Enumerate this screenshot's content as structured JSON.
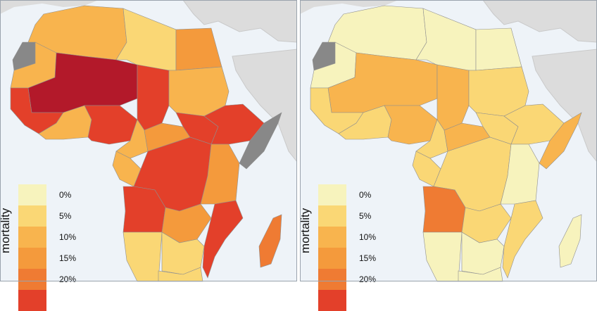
{
  "maps": [
    {
      "id": "left",
      "legend_title": "mortality",
      "legend_items": [
        {
          "label": "0%",
          "color": "#f7f3bd"
        },
        {
          "label": "5%",
          "color": "#fad775"
        },
        {
          "label": "10%",
          "color": "#f8b44e"
        },
        {
          "label": "15%",
          "color": "#f49a3c"
        },
        {
          "label": "20%",
          "color": "#ef7b33"
        },
        {
          "label": "",
          "color": "#e3402a"
        }
      ],
      "region_colors": {
        "north_west": "#f8b44e",
        "libya": "#fad775",
        "egypt": "#f49a3c",
        "sahel": "#b3192a",
        "chad": "#e3402a",
        "sudan": "#f8b44e",
        "horn": "#e3402a",
        "west_coast": "#e3402a",
        "gulf_coast": "#f8b44e",
        "nigeria": "#e3402a",
        "cameroon": "#f8b44e",
        "car": "#f49a3c",
        "south_sudan": "#e3402a",
        "ethiopia": "#e3402a",
        "somalia": "#888888",
        "drc": "#e3402a",
        "gabon": "#f8b44e",
        "kenya_tz": "#f49a3c",
        "angola": "#e3402a",
        "zambia": "#f49a3c",
        "mozambique": "#e3402a",
        "namibia": "#fad775",
        "botswana": "#fad775",
        "south_africa": "#fad775",
        "madagascar": "#ef7b33",
        "western_sahara": "#888888"
      }
    },
    {
      "id": "right",
      "legend_title": "mortality",
      "legend_items": [
        {
          "label": "0%",
          "color": "#f7f3bd"
        },
        {
          "label": "5%",
          "color": "#fad775"
        },
        {
          "label": "10%",
          "color": "#f8b44e"
        },
        {
          "label": "15%",
          "color": "#f49a3c"
        },
        {
          "label": "20%",
          "color": "#ef7b33"
        },
        {
          "label": "",
          "color": "#e3402a"
        }
      ],
      "region_colors": {
        "north_west": "#f7f3bd",
        "libya": "#f7f3bd",
        "egypt": "#f7f3bd",
        "sahel": "#f8b44e",
        "chad": "#f8b44e",
        "sudan": "#fad775",
        "horn": "#fad775",
        "west_coast": "#fad775",
        "gulf_coast": "#fad775",
        "nigeria": "#f8b44e",
        "cameroon": "#fad775",
        "car": "#f8b44e",
        "south_sudan": "#fad775",
        "ethiopia": "#fad775",
        "somalia": "#f8b44e",
        "drc": "#fad775",
        "gabon": "#fad775",
        "kenya_tz": "#f7f3bd",
        "angola": "#ef7b33",
        "zambia": "#fad775",
        "mozambique": "#fad775",
        "namibia": "#f7f3bd",
        "botswana": "#f7f3bd",
        "south_africa": "#f7f3bd",
        "madagascar": "#f7f3bd",
        "western_sahara": "#888888"
      }
    }
  ]
}
